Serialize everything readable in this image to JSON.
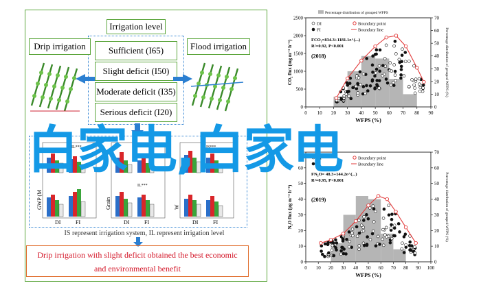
{
  "abstract": {
    "irrigation_level_title": "Irrigation level",
    "levels": [
      "Sufficient (I65)",
      "Slight deficit (I50)",
      "Moderate deficit (I35)",
      "Serious deficit (I20)"
    ],
    "left_method": "Drip irrigation",
    "right_method": "Flood irrigation",
    "note": "IS represent irrigation system, IL represent irrigation level",
    "conclusion_line1": "Drip irrigation with slight deficit obtained the best economic",
    "conclusion_line2": "and environmental benefit",
    "bar_panels": [
      {
        "ylabel": "GWP (M",
        "groups": [
          "DI",
          "FI"
        ]
      },
      {
        "ylabel": "Grain",
        "groups": [
          "DI",
          "FI"
        ]
      },
      {
        "ylabel": "W",
        "groups": [
          "DI",
          "FI"
        ]
      }
    ],
    "sig_labels": [
      "IS***",
      "IL***",
      "IS*IL***"
    ],
    "colors": {
      "green": "#5aa53a",
      "blue": "#2b7fd1",
      "red": "#d4182a",
      "orange": "#e06b2a"
    }
  },
  "watermark": "白家电,白家电",
  "chart_data": [
    {
      "type": "scatter",
      "title": "(2018)",
      "xlabel": "WFPS (%)",
      "ylabel": "CO₂ flux (mg m⁻² h⁻¹)",
      "y2label": "Percentage distribution of grouped WFPS (%)",
      "xlim": [
        0,
        90
      ],
      "ylim": [
        0,
        2500
      ],
      "y2lim": [
        0,
        70
      ],
      "xticks": [
        "0",
        "10",
        "20",
        "30",
        "40",
        "50",
        "60",
        "70",
        "80",
        "90"
      ],
      "yticks": [
        "0",
        "500",
        "1000",
        "1500",
        "2000",
        "2500"
      ],
      "y2ticks": [
        "0",
        "10",
        "20",
        "30",
        "40",
        "50",
        "60",
        "70"
      ],
      "legend": [
        "DI",
        "FI",
        "Boundary point",
        "Boundary line",
        "Percentage distribution of grouped WFPS"
      ],
      "equation": "FCO₂=834.3+1181.1e^(...)",
      "stats": "R²=0.92, P<0.001",
      "hist": [
        {
          "x": 25,
          "v": 8
        },
        {
          "x": 35,
          "v": 28
        },
        {
          "x": 45,
          "v": 40
        },
        {
          "x": 55,
          "v": 38
        },
        {
          "x": 65,
          "v": 22
        },
        {
          "x": 75,
          "v": 10
        }
      ],
      "boundary": [
        [
          22,
          250
        ],
        [
          30,
          800
        ],
        [
          40,
          1300
        ],
        [
          50,
          1700
        ],
        [
          58,
          1950
        ],
        [
          65,
          2000
        ],
        [
          72,
          1700
        ],
        [
          80,
          1100
        ],
        [
          85,
          700
        ]
      ]
    },
    {
      "type": "scatter",
      "title": "(2019)",
      "xlabel": "WFPS (%)",
      "ylabel": "N₂O flux (μg m⁻² h⁻¹)",
      "y2label": "Percentage distribution of grouped WFPS (%)",
      "xlim": [
        0,
        100
      ],
      "ylim": [
        0,
        70
      ],
      "y2lim": [
        0,
        70
      ],
      "xticks": [
        "0",
        "10",
        "20",
        "30",
        "40",
        "50",
        "60",
        "70",
        "80",
        "90",
        "100"
      ],
      "yticks": [
        "0",
        "10",
        "20",
        "30",
        "40",
        "50",
        "60",
        "70"
      ],
      "y2ticks": [
        "0",
        "10",
        "20",
        "30",
        "40",
        "50",
        "60",
        "70"
      ],
      "legend": [
        "DI",
        "FI",
        "Boundary point",
        "Boundary line"
      ],
      "equation": "FN₂O= 48.3+144.2e^(...)",
      "stats": "R²=0.95, P<0.001",
      "hist": [
        {
          "x": 25,
          "v": 12
        },
        {
          "x": 35,
          "v": 30
        },
        {
          "x": 45,
          "v": 42
        },
        {
          "x": 55,
          "v": 40
        },
        {
          "x": 65,
          "v": 18
        },
        {
          "x": 75,
          "v": 8
        }
      ],
      "boundary": [
        [
          12,
          12
        ],
        [
          20,
          14
        ],
        [
          30,
          18
        ],
        [
          40,
          26
        ],
        [
          50,
          36
        ],
        [
          58,
          42
        ],
        [
          65,
          40
        ],
        [
          72,
          32
        ],
        [
          80,
          22
        ],
        [
          88,
          12
        ]
      ]
    }
  ]
}
